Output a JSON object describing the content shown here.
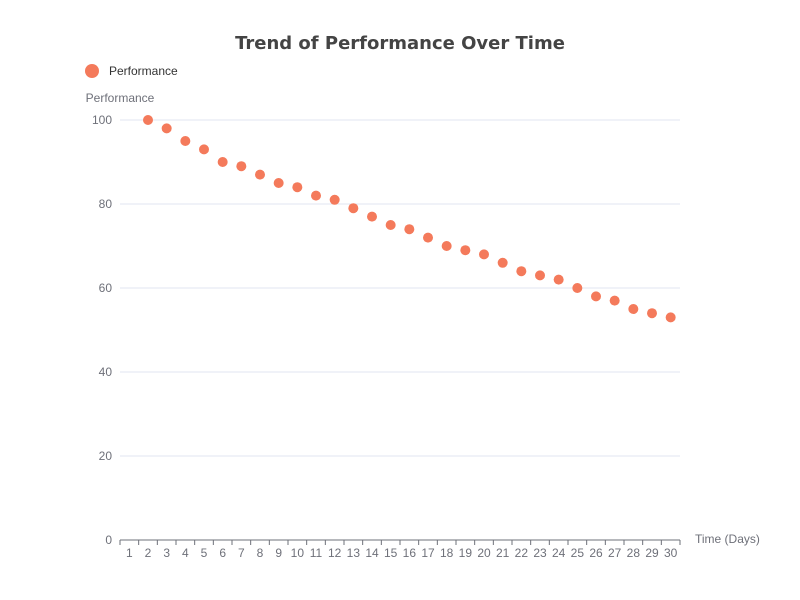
{
  "chart_data": {
    "type": "scatter",
    "title": "Trend of Performance Over Time",
    "xlabel": "Time (Days)",
    "ylabel": "Performance",
    "legend": {
      "position": "top-left",
      "entries": [
        "Performance"
      ]
    },
    "grid": true,
    "x_categories": [
      "1",
      "2",
      "3",
      "4",
      "5",
      "6",
      "7",
      "8",
      "9",
      "10",
      "11",
      "12",
      "13",
      "14",
      "15",
      "16",
      "17",
      "18",
      "19",
      "20",
      "21",
      "22",
      "23",
      "24",
      "25",
      "26",
      "27",
      "28",
      "29",
      "30"
    ],
    "ylim": [
      0,
      100
    ],
    "y_ticks": [
      0,
      20,
      40,
      60,
      80,
      100
    ],
    "series": [
      {
        "name": "Performance",
        "color": "#f47a5b",
        "points": [
          {
            "x": "2",
            "y": 100
          },
          {
            "x": "3",
            "y": 98
          },
          {
            "x": "4",
            "y": 95
          },
          {
            "x": "5",
            "y": 93
          },
          {
            "x": "6",
            "y": 90
          },
          {
            "x": "7",
            "y": 89
          },
          {
            "x": "8",
            "y": 87
          },
          {
            "x": "9",
            "y": 85
          },
          {
            "x": "10",
            "y": 84
          },
          {
            "x": "11",
            "y": 82
          },
          {
            "x": "12",
            "y": 81
          },
          {
            "x": "13",
            "y": 79
          },
          {
            "x": "14",
            "y": 77
          },
          {
            "x": "15",
            "y": 75
          },
          {
            "x": "16",
            "y": 74
          },
          {
            "x": "17",
            "y": 72
          },
          {
            "x": "18",
            "y": 70
          },
          {
            "x": "19",
            "y": 69
          },
          {
            "x": "20",
            "y": 68
          },
          {
            "x": "21",
            "y": 66
          },
          {
            "x": "22",
            "y": 64
          },
          {
            "x": "23",
            "y": 63
          },
          {
            "x": "24",
            "y": 62
          },
          {
            "x": "25",
            "y": 60
          },
          {
            "x": "26",
            "y": 58
          },
          {
            "x": "27",
            "y": 57
          },
          {
            "x": "28",
            "y": 55
          },
          {
            "x": "29",
            "y": 54
          },
          {
            "x": "30",
            "y": 53
          }
        ]
      }
    ]
  }
}
